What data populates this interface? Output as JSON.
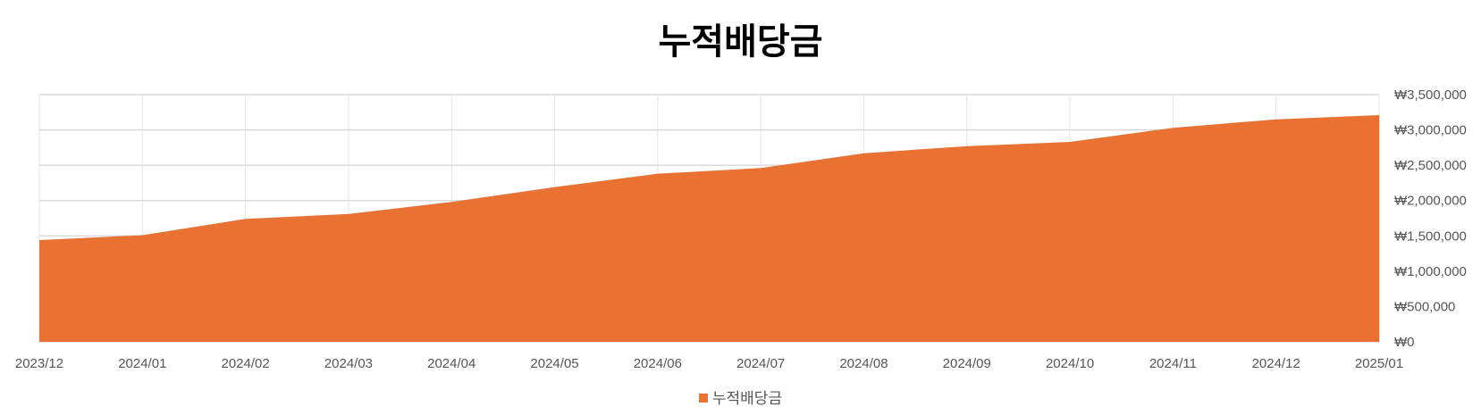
{
  "chart_data": {
    "type": "area",
    "title": "누적배당금",
    "xlabel": "",
    "ylabel": "",
    "categories": [
      "2023/12",
      "2024/01",
      "2024/02",
      "2024/03",
      "2024/04",
      "2024/05",
      "2024/06",
      "2024/07",
      "2024/08",
      "2024/09",
      "2024/10",
      "2024/11",
      "2024/12",
      "2025/01"
    ],
    "series": [
      {
        "name": "누적배당금",
        "color": "#E97132",
        "values": [
          1440000,
          1510000,
          1740000,
          1810000,
          1980000,
          2190000,
          2380000,
          2460000,
          2670000,
          2770000,
          2830000,
          3030000,
          3150000,
          3210000
        ]
      }
    ],
    "ylim": [
      0,
      3500000
    ],
    "y_ticks": [
      {
        "value": 0,
        "label": "₩0"
      },
      {
        "value": 500000,
        "label": "₩500,000"
      },
      {
        "value": 1000000,
        "label": "₩1,000,000"
      },
      {
        "value": 1500000,
        "label": "₩1,500,000"
      },
      {
        "value": 2000000,
        "label": "₩2,000,000"
      },
      {
        "value": 2500000,
        "label": "₩2,500,000"
      },
      {
        "value": 3000000,
        "label": "₩3,000,000"
      },
      {
        "value": 3500000,
        "label": "₩3,500,000"
      }
    ],
    "y_axis_side": "right",
    "grid": true,
    "legend_position": "bottom"
  }
}
